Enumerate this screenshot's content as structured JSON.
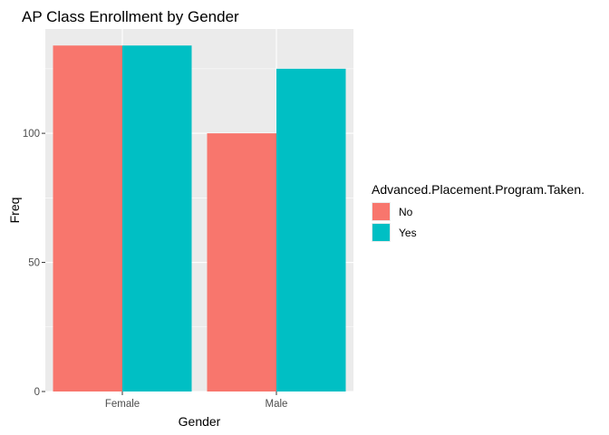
{
  "colors": {
    "panel_bg": "#EBEBEB",
    "grid_major": "#FFFFFF",
    "tick": "#333333",
    "no": "#F8766D",
    "yes": "#00BFC4"
  },
  "chart_data": {
    "type": "bar",
    "title": "AP Class Enrollment by Gender",
    "xlabel": "Gender",
    "ylabel": "Freq",
    "categories": [
      "Female",
      "Male"
    ],
    "series": [
      {
        "name": "No",
        "values": [
          134,
          100
        ],
        "color": "#F8766D"
      },
      {
        "name": "Yes",
        "values": [
          134,
          125
        ],
        "color": "#00BFC4"
      }
    ],
    "ylim": [
      0,
      140.4
    ],
    "yticks": [
      0,
      50,
      100
    ],
    "ytick_labels": [
      "0",
      "50",
      "100"
    ],
    "legend": {
      "title": "Advanced.Placement.Program.Taken.",
      "position": "right"
    },
    "grid": true
  }
}
